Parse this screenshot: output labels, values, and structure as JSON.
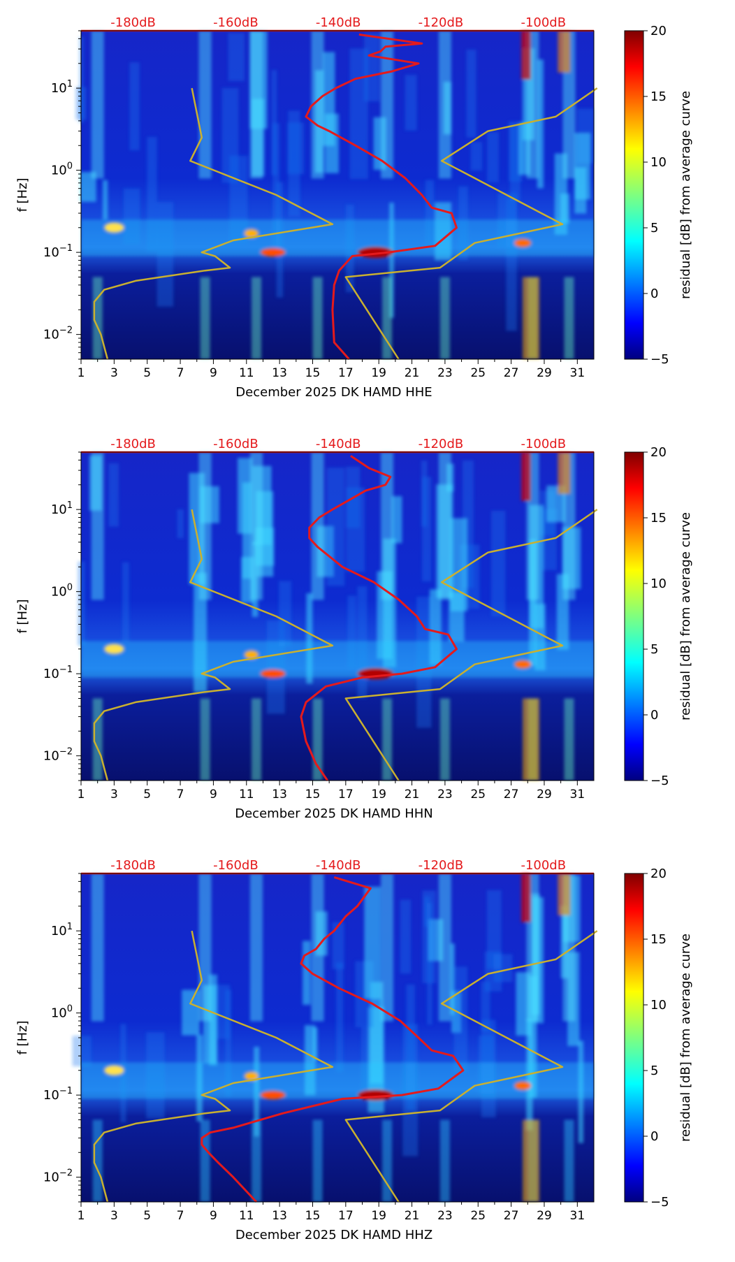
{
  "colors": {
    "noise_curve": "#e41a1c",
    "model_curve": "#c9b030",
    "top_label": "#e41a1c",
    "text": "#000000"
  },
  "chart_data": [
    {
      "type": "heatmap",
      "title": "",
      "xlabel": "December 2025 DK HAMD  HHE",
      "ylabel": "f [Hz]",
      "xlim": [
        1,
        32
      ],
      "ylim": [
        0.005,
        50
      ],
      "yscale": "log",
      "x_ticks": [
        1,
        3,
        5,
        7,
        9,
        11,
        13,
        15,
        17,
        19,
        21,
        23,
        25,
        27,
        29,
        31
      ],
      "y_ticks": [
        {
          "value": 10,
          "label": "10^1"
        },
        {
          "value": 1,
          "label": "10^0"
        },
        {
          "value": 0.1,
          "label": "10^-1"
        },
        {
          "value": 0.01,
          "label": "10^-2"
        }
      ],
      "top_axis": {
        "labels": [
          "-180dB",
          "-160dB",
          "-140dB",
          "-120dB",
          "-100dB"
        ],
        "positions": [
          4.15,
          10.35,
          16.55,
          22.75,
          28.95
        ]
      },
      "colorbar": {
        "label": "residual [dB] from average curve",
        "min": -5,
        "max": 20,
        "ticks": [
          20,
          15,
          10,
          5,
          0,
          -5
        ]
      },
      "series": [
        {
          "name": "noise model limits",
          "x": [
            2.6,
            2.2,
            1.8,
            1.8,
            2.4,
            4.3,
            8.5,
            10.0,
            9.1,
            8.3,
            10.2,
            16.2,
            12.8,
            7.6,
            8.3,
            7.7
          ],
          "y": [
            0.005,
            0.01,
            0.015,
            0.025,
            0.035,
            0.045,
            0.06,
            0.065,
            0.09,
            0.1,
            0.14,
            0.22,
            0.5,
            1.3,
            2.5,
            10
          ]
        },
        {
          "name": "noise model limits",
          "x": [
            20.2,
            17.0,
            22.7,
            24.8,
            30.1,
            22.8,
            25.6,
            29.7,
            32.2
          ],
          "y": [
            0.005,
            0.05,
            0.065,
            0.13,
            0.22,
            1.3,
            3.0,
            4.5,
            10
          ]
        },
        {
          "name": "average noise level",
          "x": [
            17.2,
            16.3,
            16.2,
            16.3,
            16.6,
            17.4,
            19.6,
            22.4,
            23.7,
            23.4,
            22.2,
            21.6,
            20.6,
            19.2,
            17.6,
            16.0,
            15.3,
            14.6,
            14.9,
            15.6,
            16.4,
            17.6,
            19.8,
            21.4,
            18.4,
            19.1,
            19.4,
            21.6,
            17.8
          ],
          "y": [
            0.005,
            0.008,
            0.02,
            0.04,
            0.06,
            0.09,
            0.1,
            0.12,
            0.2,
            0.3,
            0.35,
            0.5,
            0.8,
            1.3,
            2.0,
            3.0,
            3.5,
            4.5,
            6.0,
            8.0,
            10.0,
            13.0,
            16.0,
            20.0,
            25.0,
            28.0,
            32.0,
            35.0,
            45.0
          ]
        }
      ]
    },
    {
      "type": "heatmap",
      "title": "",
      "xlabel": "December 2025 DK HAMD  HHN",
      "ylabel": "f [Hz]",
      "xlim": [
        1,
        32
      ],
      "ylim": [
        0.005,
        50
      ],
      "yscale": "log",
      "x_ticks": [
        1,
        3,
        5,
        7,
        9,
        11,
        13,
        15,
        17,
        19,
        21,
        23,
        25,
        27,
        29,
        31
      ],
      "y_ticks": [
        {
          "value": 10,
          "label": "10^1"
        },
        {
          "value": 1,
          "label": "10^0"
        },
        {
          "value": 0.1,
          "label": "10^-1"
        },
        {
          "value": 0.01,
          "label": "10^-2"
        }
      ],
      "top_axis": {
        "labels": [
          "-180dB",
          "-160dB",
          "-140dB",
          "-120dB",
          "-100dB"
        ],
        "positions": [
          4.15,
          10.35,
          16.55,
          22.75,
          28.95
        ]
      },
      "colorbar": {
        "label": "residual [dB] from average curve",
        "min": -5,
        "max": 20,
        "ticks": [
          20,
          15,
          10,
          5,
          0,
          -5
        ]
      },
      "series": [
        {
          "name": "noise model limits",
          "x": [
            2.6,
            2.2,
            1.8,
            1.8,
            2.4,
            4.3,
            8.5,
            10.0,
            9.1,
            8.3,
            10.2,
            16.2,
            12.8,
            7.6,
            8.3,
            7.7
          ],
          "y": [
            0.005,
            0.01,
            0.015,
            0.025,
            0.035,
            0.045,
            0.06,
            0.065,
            0.09,
            0.1,
            0.14,
            0.22,
            0.5,
            1.3,
            2.5,
            10
          ]
        },
        {
          "name": "noise model limits",
          "x": [
            20.2,
            17.0,
            22.7,
            24.8,
            30.1,
            22.8,
            25.6,
            29.7,
            32.2
          ],
          "y": [
            0.005,
            0.05,
            0.065,
            0.13,
            0.22,
            1.3,
            3.0,
            4.5,
            10
          ]
        },
        {
          "name": "average noise level",
          "x": [
            15.9,
            15.2,
            14.6,
            14.3,
            14.6,
            15.8,
            18.0,
            20.4,
            22.4,
            23.7,
            23.2,
            21.8,
            21.3,
            20.2,
            18.7,
            16.8,
            15.3,
            14.8,
            14.8,
            15.4,
            16.2,
            17.2,
            18.2,
            19.4,
            19.7,
            18.4,
            17.3
          ],
          "y": [
            0.005,
            0.008,
            0.015,
            0.03,
            0.045,
            0.07,
            0.09,
            0.1,
            0.12,
            0.2,
            0.3,
            0.35,
            0.5,
            0.8,
            1.3,
            2.0,
            3.5,
            4.5,
            6.0,
            8.0,
            10.0,
            13.0,
            17.0,
            20.0,
            25.0,
            32.0,
            45.0
          ]
        }
      ]
    },
    {
      "type": "heatmap",
      "title": "",
      "xlabel": "December 2025 DK HAMD  HHZ",
      "ylabel": "f [Hz]",
      "xlim": [
        1,
        32
      ],
      "ylim": [
        0.005,
        50
      ],
      "yscale": "log",
      "x_ticks": [
        1,
        3,
        5,
        7,
        9,
        11,
        13,
        15,
        17,
        19,
        21,
        23,
        25,
        27,
        29,
        31
      ],
      "y_ticks": [
        {
          "value": 10,
          "label": "10^1"
        },
        {
          "value": 1,
          "label": "10^0"
        },
        {
          "value": 0.1,
          "label": "10^-1"
        },
        {
          "value": 0.01,
          "label": "10^-2"
        }
      ],
      "top_axis": {
        "labels": [
          "-180dB",
          "-160dB",
          "-140dB",
          "-120dB",
          "-100dB"
        ],
        "positions": [
          4.15,
          10.35,
          16.55,
          22.75,
          28.95
        ]
      },
      "colorbar": {
        "label": "residual [dB] from average curve",
        "min": -5,
        "max": 20,
        "ticks": [
          20,
          15,
          10,
          5,
          0,
          -5
        ]
      },
      "series": [
        {
          "name": "noise model limits",
          "x": [
            2.6,
            2.2,
            1.8,
            1.8,
            2.4,
            4.3,
            8.5,
            10.0,
            9.1,
            8.3,
            10.2,
            16.2,
            12.8,
            7.6,
            8.3,
            7.7
          ],
          "y": [
            0.005,
            0.01,
            0.015,
            0.025,
            0.035,
            0.045,
            0.06,
            0.065,
            0.09,
            0.1,
            0.14,
            0.22,
            0.5,
            1.3,
            2.5,
            10
          ]
        },
        {
          "name": "noise model limits",
          "x": [
            20.2,
            17.0,
            22.7,
            24.8,
            30.1,
            22.8,
            25.6,
            29.7,
            32.2
          ],
          "y": [
            0.005,
            0.05,
            0.065,
            0.13,
            0.22,
            1.3,
            3.0,
            4.5,
            10
          ]
        },
        {
          "name": "average noise level",
          "x": [
            11.6,
            10.2,
            9.3,
            8.7,
            8.3,
            8.3,
            8.8,
            10.2,
            13.2,
            16.8,
            20.4,
            22.6,
            24.1,
            23.5,
            22.2,
            21.4,
            20.3,
            18.6,
            16.6,
            15.0,
            14.3,
            14.5,
            15.2,
            15.7,
            16.3,
            17.0,
            17.7,
            18.5,
            16.3
          ],
          "y": [
            0.005,
            0.01,
            0.015,
            0.02,
            0.025,
            0.03,
            0.035,
            0.04,
            0.06,
            0.09,
            0.1,
            0.12,
            0.2,
            0.3,
            0.35,
            0.5,
            0.8,
            1.3,
            2.0,
            3.0,
            4.0,
            5.0,
            6.0,
            8.0,
            10.0,
            15.0,
            20.0,
            33.0,
            45.0
          ]
        }
      ]
    }
  ]
}
